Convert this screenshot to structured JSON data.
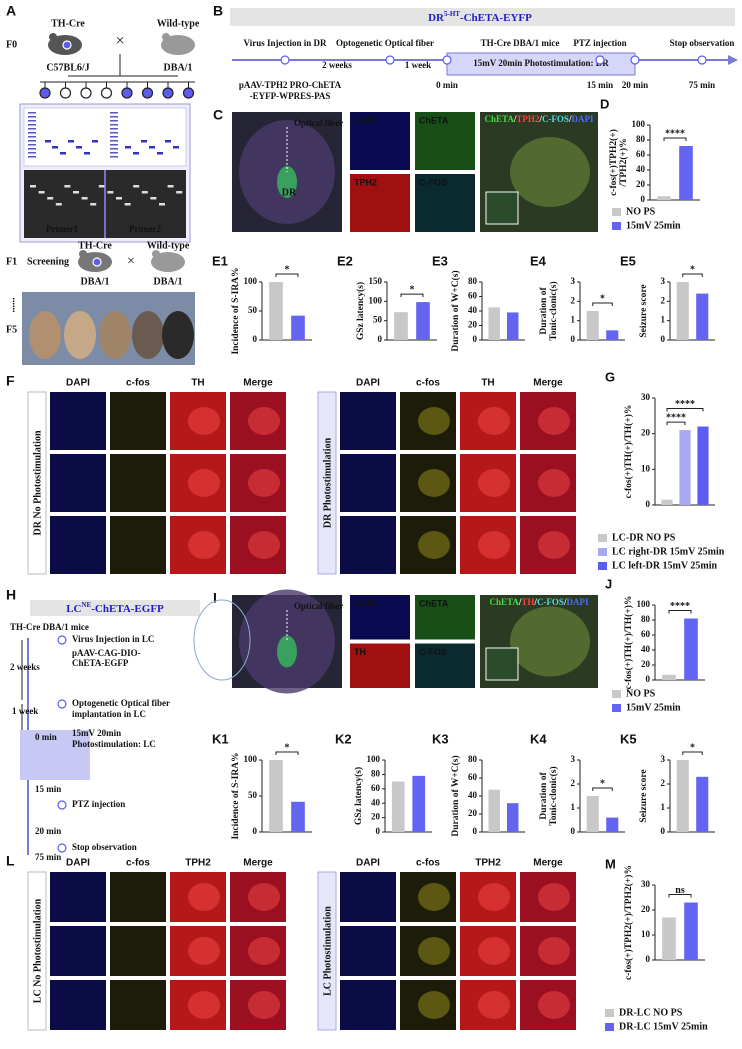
{
  "A": {
    "label": "A",
    "gen0": "F0",
    "male": "TH-Cre",
    "female": "Wild-type",
    "male_strain": "C57BL6/J",
    "female_strain": "DBA/1",
    "cross": "×",
    "primer1": "Primer1",
    "primer2": "Primer2",
    "gen1": "F1",
    "screening": "Screening",
    "f1_male": "TH-Cre",
    "f1_female": "Wild-type",
    "f1_cross": "×",
    "f1_male_strain": "DBA/1",
    "f1_female_strain": "DBA/1",
    "ellipsis": "......",
    "gen5": "F5"
  },
  "B": {
    "label": "B",
    "title": {
      "base": "DR",
      "sup": "5-HT",
      "rest": "-ChETA-EYFP"
    },
    "virus": "Virus Injection in DR",
    "fiber": "Optogenetic Optical fiber",
    "mice": "TH-Cre DBA/1 mice",
    "ptz": "PTZ injection",
    "stop": "Stop observation",
    "interval1": "2 weeks",
    "interval2": "1 week",
    "stim": "15mV 20min Photostimulation: DR",
    "times": [
      "0 min",
      "15 min",
      "20 min",
      "75 min"
    ],
    "vector": [
      "pAAV-TPH2 PRO-ChETA",
      "-EYFP-WPRES-PAS"
    ]
  },
  "C": {
    "label": "C",
    "fiber": "Optical fiber",
    "region": "DR",
    "tiles": [
      "DAPI",
      "ChETA",
      "TPH2",
      "C-FOS"
    ],
    "merge": [
      "ChETA",
      "/",
      "TPH2",
      "/",
      "C-FOS",
      "/",
      "DAPI"
    ]
  },
  "F": {
    "label": "F",
    "panels": [
      {
        "side": "DR No Photostimulation",
        "columns": [
          "DAPI",
          "c-fos",
          "TH",
          "Merge"
        ]
      },
      {
        "side": "DR Photostimulation",
        "columns": [
          "DAPI",
          "c-fos",
          "TH",
          "Merge"
        ]
      }
    ]
  },
  "H": {
    "label": "H",
    "title": {
      "base": "LC",
      "sup": "NE",
      "rest": "-ChETA-EGFP"
    },
    "mice": "TH-Cre DBA/1 mice",
    "virus": "Virus Injection in LC",
    "vector": [
      "pAAV-CAG-DIO-",
      "ChETA-EGFP"
    ],
    "interval1": "2 weeks",
    "fiber": [
      "Optogenetic Optical fiber",
      "implantation in LC"
    ],
    "interval2": "1 week",
    "times": [
      "0 min",
      "15 min",
      "20 min",
      "75 min"
    ],
    "stim": [
      "15mV 20min",
      "Photostimulation: LC"
    ],
    "ptz": "PTZ injection",
    "stop": "Stop observation"
  },
  "I": {
    "label": "I",
    "fiber": "Optical fiber",
    "tiles": [
      "DAPI",
      "ChETA",
      "TH",
      "C-FOS"
    ],
    "merge": [
      "ChETA",
      "/",
      "TH",
      "/",
      "C-FOS",
      "/",
      "DAPI"
    ]
  },
  "L": {
    "label": "L",
    "panels": [
      {
        "side": "LC No Photostimulation",
        "columns": [
          "DAPI",
          "c-fos",
          "TPH2",
          "Merge"
        ]
      },
      {
        "side": "LC Photostimulation",
        "columns": [
          "DAPI",
          "c-fos",
          "TPH2",
          "Merge"
        ]
      }
    ]
  },
  "chart_data": [
    {
      "type": "bar",
      "panel": "D",
      "ylabel": [
        "c-fos(+)TPH2(+)",
        "/TPH2(+)%"
      ],
      "categories": [
        "NO PS",
        "15mV 25min"
      ],
      "values": [
        5,
        72
      ],
      "colors": [
        "#c8c8c8",
        "#6464f2"
      ],
      "ylim": [
        0,
        100
      ],
      "yticks": [
        0,
        20,
        40,
        60,
        80,
        100
      ],
      "brackets": [
        {
          "label": "****",
          "between": [
            0,
            1
          ]
        }
      ]
    },
    {
      "type": "bar",
      "panel": "E1",
      "ylabel": [
        "Incidence of S-IRA%"
      ],
      "values": [
        100,
        42
      ],
      "colors": [
        "#c8c8c8",
        "#6464f2"
      ],
      "ylim": [
        0,
        100
      ],
      "yticks": [
        0,
        50,
        100
      ],
      "brackets": [
        {
          "label": "*",
          "between": [
            0,
            1
          ]
        }
      ]
    },
    {
      "type": "bar",
      "panel": "E2",
      "ylabel": [
        "GSz latency(s)"
      ],
      "values": [
        72,
        98
      ],
      "colors": [
        "#c8c8c8",
        "#6464f2"
      ],
      "ylim": [
        0,
        150
      ],
      "yticks": [
        0,
        50,
        100,
        150
      ],
      "brackets": [
        {
          "label": "*",
          "between": [
            0,
            1
          ]
        }
      ]
    },
    {
      "type": "bar",
      "panel": "E3",
      "ylabel": [
        "Duration of W+C(s)"
      ],
      "values": [
        45,
        38
      ],
      "colors": [
        "#c8c8c8",
        "#6464f2"
      ],
      "ylim": [
        0,
        80
      ],
      "yticks": [
        0,
        20,
        40,
        60,
        80
      ],
      "brackets": []
    },
    {
      "type": "bar",
      "panel": "E4",
      "ylabel": [
        "Duration of",
        "Tonic-clonic(s)"
      ],
      "values": [
        1.5,
        0.5
      ],
      "colors": [
        "#c8c8c8",
        "#6464f2"
      ],
      "ylim": [
        0,
        3
      ],
      "yticks": [
        0,
        1,
        2,
        3
      ],
      "brackets": [
        {
          "label": "*",
          "between": [
            0,
            1
          ]
        }
      ]
    },
    {
      "type": "bar",
      "panel": "E5",
      "ylabel": [
        "Seizure score"
      ],
      "values": [
        3,
        2.4
      ],
      "colors": [
        "#c8c8c8",
        "#6464f2"
      ],
      "ylim": [
        0,
        3
      ],
      "yticks": [
        0,
        1,
        2,
        3
      ],
      "brackets": [
        {
          "label": "*",
          "between": [
            0,
            1
          ]
        }
      ]
    },
    {
      "type": "bar",
      "panel": "G",
      "ylabel": [
        "c-fos(+)TH(+)/TH(+)%"
      ],
      "categories": [
        "LC-DR NO PS",
        "LC right-DR 15mV 25min",
        "LC left-DR 15mV 25min"
      ],
      "values": [
        1.5,
        21,
        22
      ],
      "colors": [
        "#c8c8c8",
        "#a9a9f2",
        "#5c5cf0"
      ],
      "ylim": [
        0,
        30
      ],
      "yticks": [
        0,
        10,
        20,
        30
      ],
      "brackets": [
        {
          "label": "****",
          "between": [
            0,
            1
          ]
        },
        {
          "label": "****",
          "between": [
            0,
            2
          ]
        }
      ]
    },
    {
      "type": "bar",
      "panel": "J",
      "ylabel": [
        "c-fos(+)TH(+)/TH(+)%"
      ],
      "categories": [
        "NO PS",
        "15mV 25min"
      ],
      "values": [
        7,
        82
      ],
      "colors": [
        "#c8c8c8",
        "#6464f2"
      ],
      "ylim": [
        0,
        100
      ],
      "yticks": [
        0,
        20,
        40,
        60,
        80,
        100
      ],
      "brackets": [
        {
          "label": "****",
          "between": [
            0,
            1
          ]
        }
      ]
    },
    {
      "type": "bar",
      "panel": "K1",
      "ylabel": [
        "Incidence of S-IRA%"
      ],
      "values": [
        100,
        42
      ],
      "colors": [
        "#c8c8c8",
        "#6464f2"
      ],
      "ylim": [
        0,
        100
      ],
      "yticks": [
        0,
        50,
        100
      ],
      "brackets": [
        {
          "label": "*",
          "between": [
            0,
            1
          ]
        }
      ]
    },
    {
      "type": "bar",
      "panel": "K2",
      "ylabel": [
        "GSz latency(s)"
      ],
      "values": [
        70,
        78
      ],
      "colors": [
        "#c8c8c8",
        "#6464f2"
      ],
      "ylim": [
        0,
        100
      ],
      "yticks": [
        0,
        20,
        40,
        60,
        80,
        100
      ],
      "brackets": []
    },
    {
      "type": "bar",
      "panel": "K3",
      "ylabel": [
        "Duration of W+C(s)"
      ],
      "values": [
        47,
        32
      ],
      "colors": [
        "#c8c8c8",
        "#6464f2"
      ],
      "ylim": [
        0,
        80
      ],
      "yticks": [
        0,
        20,
        40,
        60,
        80
      ],
      "brackets": []
    },
    {
      "type": "bar",
      "panel": "K4",
      "ylabel": [
        "Duration of",
        "Tonic-clonic(s)"
      ],
      "values": [
        1.5,
        0.6
      ],
      "colors": [
        "#c8c8c8",
        "#6464f2"
      ],
      "ylim": [
        0,
        3
      ],
      "yticks": [
        0,
        1,
        2,
        3
      ],
      "brackets": [
        {
          "label": "*",
          "between": [
            0,
            1
          ]
        }
      ]
    },
    {
      "type": "bar",
      "panel": "K5",
      "ylabel": [
        "Seizure score"
      ],
      "values": [
        3,
        2.3
      ],
      "colors": [
        "#c8c8c8",
        "#6464f2"
      ],
      "ylim": [
        0,
        3
      ],
      "yticks": [
        0,
        1,
        2,
        3
      ],
      "brackets": [
        {
          "label": "*",
          "between": [
            0,
            1
          ]
        }
      ]
    },
    {
      "type": "bar",
      "panel": "M",
      "ylabel": [
        "c-fos(+)TPH2(+)/TPH2(+)%"
      ],
      "categories": [
        "DR-LC NO PS",
        "DR-LC 15mV 25min"
      ],
      "values": [
        17,
        23
      ],
      "colors": [
        "#c8c8c8",
        "#6464f2"
      ],
      "ylim": [
        0,
        30
      ],
      "yticks": [
        0,
        10,
        20,
        30
      ],
      "brackets": [
        {
          "label": "ns",
          "between": [
            0,
            1
          ]
        }
      ]
    }
  ]
}
